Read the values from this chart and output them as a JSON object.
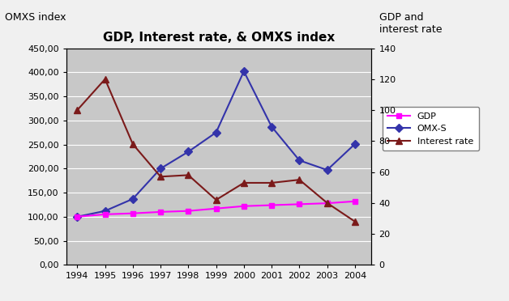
{
  "title": "GDP, Interest rate, & OMXS index",
  "ylabel_left": "OMXS index",
  "ylabel_right": "GDP and\ninterest rate",
  "years": [
    1994,
    1995,
    1996,
    1997,
    1998,
    1999,
    2000,
    2001,
    2002,
    2003,
    2004
  ],
  "gdp": [
    100,
    105,
    107,
    110,
    112,
    117,
    122,
    124,
    126,
    128,
    132
  ],
  "omxs": [
    100,
    112,
    137,
    200,
    235,
    275,
    402,
    287,
    217,
    197,
    251
  ],
  "interest_rate": [
    100,
    120,
    78,
    57,
    58,
    42,
    53,
    53,
    55,
    40,
    28
  ],
  "gdp_color": "#FF00FF",
  "omxs_color": "#3333AA",
  "interest_color": "#7B1A1A",
  "background_color": "#C8C8C8",
  "fig_background": "#F0F0F0",
  "ylim_left": [
    0,
    450
  ],
  "ylim_right": [
    0,
    140
  ],
  "yticks_left": [
    0,
    50,
    100,
    150,
    200,
    250,
    300,
    350,
    400,
    450
  ],
  "yticks_right": [
    0,
    20,
    40,
    60,
    80,
    100,
    120,
    140
  ],
  "legend_labels": [
    "GDP",
    "OMX-S",
    "Interest rate"
  ],
  "figsize": [
    6.28,
    3.72
  ],
  "dpi": 100
}
